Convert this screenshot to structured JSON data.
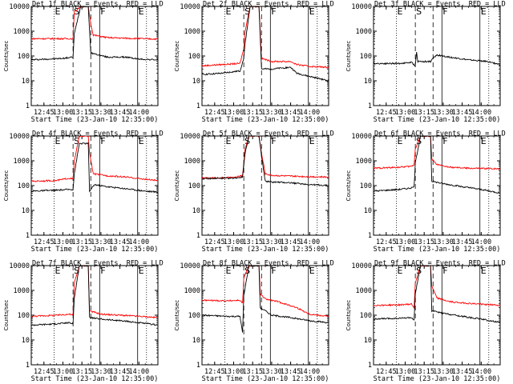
{
  "chart_data": {
    "type": "line",
    "common": {
      "ylabel": "Counts/sec",
      "xlabel": "Start Time (23-Jan-10 12:35:00)",
      "yscale": "log",
      "ylim": [
        1,
        10000
      ],
      "yticks": [
        1,
        10,
        100,
        1000,
        10000
      ],
      "yticklabels": [
        "1",
        "10",
        "100",
        "1000",
        "10000"
      ],
      "xlim": [
        "12:35",
        "14:15"
      ],
      "xticks": [
        "12:45",
        "13:00",
        "13:15",
        "13:30",
        "13:45",
        "14:00"
      ],
      "xticklabels": [
        "12:45",
        "13:00",
        "13:15",
        "13:30",
        "13:45",
        "14:00"
      ],
      "series_colors": {
        "events": "#000000",
        "lld": "#ff0000"
      },
      "interval_labels": [
        "E",
        "S",
        "F",
        "E"
      ],
      "interval_lines": {
        "dotted": [
          "12:53",
          "14:06"
        ],
        "dashed": [
          "13:08",
          "13:22"
        ],
        "solid": [
          "13:29",
          "13:59"
        ]
      }
    },
    "panels": [
      {
        "title": "Det 1f BLACK = Events, RED = LLD",
        "events": [
          [
            "12:35",
            70
          ],
          [
            "13:00",
            80
          ],
          [
            "13:08",
            90
          ],
          [
            "13:09",
            800
          ],
          [
            "13:14",
            10000
          ],
          [
            "13:20",
            10000
          ],
          [
            "13:22",
            120
          ],
          [
            "13:23",
            130
          ],
          [
            "13:35",
            90
          ],
          [
            "13:50",
            90
          ],
          [
            "14:00",
            75
          ],
          [
            "14:15",
            70
          ]
        ],
        "lld": [
          [
            "12:35",
            500
          ],
          [
            "13:08",
            500
          ],
          [
            "13:09",
            6000
          ],
          [
            "13:14",
            10000
          ],
          [
            "13:20",
            10000
          ],
          [
            "13:22",
            2000
          ],
          [
            "13:24",
            700
          ],
          [
            "13:35",
            550
          ],
          [
            "13:50",
            520
          ],
          [
            "14:15",
            480
          ]
        ]
      },
      {
        "title": "Det 2f BLACK = Events, RED = LLD",
        "events": [
          [
            "12:35",
            18
          ],
          [
            "12:50",
            20
          ],
          [
            "13:05",
            25
          ],
          [
            "13:08",
            80
          ],
          [
            "13:09",
            300
          ],
          [
            "13:13",
            10000
          ],
          [
            "13:20",
            10000
          ],
          [
            "13:22",
            30
          ],
          [
            "13:30",
            30
          ],
          [
            "13:45",
            35
          ],
          [
            "13:50",
            20
          ],
          [
            "14:00",
            15
          ],
          [
            "14:15",
            10
          ]
        ],
        "lld": [
          [
            "12:35",
            40
          ],
          [
            "12:50",
            45
          ],
          [
            "13:05",
            50
          ],
          [
            "13:08",
            200
          ],
          [
            "13:09",
            1000
          ],
          [
            "13:13",
            10000
          ],
          [
            "13:20",
            10000
          ],
          [
            "13:22",
            80
          ],
          [
            "13:30",
            60
          ],
          [
            "13:45",
            60
          ],
          [
            "13:50",
            45
          ],
          [
            "14:00",
            38
          ],
          [
            "14:15",
            35
          ]
        ]
      },
      {
        "title": "Det 3f BLACK = Events, RED = LLD",
        "events": [
          [
            "12:35",
            50
          ],
          [
            "12:55",
            50
          ],
          [
            "13:05",
            55
          ],
          [
            "13:08",
            40
          ],
          [
            "13:09",
            150
          ],
          [
            "13:10",
            60
          ],
          [
            "13:20",
            60
          ],
          [
            "13:22",
            80
          ],
          [
            "13:25",
            110
          ],
          [
            "13:35",
            90
          ],
          [
            "13:50",
            70
          ],
          [
            "14:05",
            60
          ],
          [
            "14:15",
            45
          ]
        ],
        "lld": []
      },
      {
        "title": "Det 4f BLACK = Events, RED = LLD",
        "events": [
          [
            "12:35",
            60
          ],
          [
            "12:55",
            65
          ],
          [
            "13:05",
            70
          ],
          [
            "13:08",
            70
          ],
          [
            "13:09",
            300
          ],
          [
            "13:13",
            5000
          ],
          [
            "13:20",
            5000
          ],
          [
            "13:21",
            60
          ],
          [
            "13:25",
            110
          ],
          [
            "13:35",
            90
          ],
          [
            "13:50",
            75
          ],
          [
            "14:05",
            60
          ],
          [
            "14:15",
            55
          ]
        ],
        "lld": [
          [
            "12:35",
            150
          ],
          [
            "12:55",
            160
          ],
          [
            "13:05",
            200
          ],
          [
            "13:08",
            180
          ],
          [
            "13:09",
            1000
          ],
          [
            "13:13",
            10000
          ],
          [
            "13:20",
            10000
          ],
          [
            "13:21",
            2000
          ],
          [
            "13:24",
            300
          ],
          [
            "13:35",
            250
          ],
          [
            "13:50",
            220
          ],
          [
            "14:05",
            180
          ],
          [
            "14:15",
            160
          ]
        ]
      },
      {
        "title": "Det 5f BLACK = Events, RED = LLD",
        "events": [
          [
            "12:35",
            190
          ],
          [
            "13:00",
            200
          ],
          [
            "13:07",
            220
          ],
          [
            "13:09",
            2000
          ],
          [
            "13:12",
            10000
          ],
          [
            "13:20",
            10000
          ],
          [
            "13:22",
            1500
          ],
          [
            "13:25",
            150
          ],
          [
            "13:30",
            140
          ],
          [
            "13:45",
            130
          ],
          [
            "14:00",
            110
          ],
          [
            "14:15",
            100
          ]
        ],
        "lld": [
          [
            "12:35",
            200
          ],
          [
            "13:00",
            210
          ],
          [
            "13:07",
            250
          ],
          [
            "13:09",
            3000
          ],
          [
            "13:12",
            10000
          ],
          [
            "13:20",
            10000
          ],
          [
            "13:22",
            2000
          ],
          [
            "13:25",
            300
          ],
          [
            "13:30",
            260
          ],
          [
            "13:45",
            240
          ],
          [
            "14:00",
            230
          ],
          [
            "14:15",
            220
          ]
        ]
      },
      {
        "title": "Det 6f BLACK = Events, RED = LLD",
        "events": [
          [
            "12:35",
            60
          ],
          [
            "12:55",
            70
          ],
          [
            "13:05",
            80
          ],
          [
            "13:07",
            90
          ],
          [
            "13:08",
            800
          ],
          [
            "13:12",
            10000
          ],
          [
            "13:20",
            10000
          ],
          [
            "13:21",
            150
          ],
          [
            "13:30",
            120
          ],
          [
            "13:45",
            90
          ],
          [
            "14:00",
            70
          ],
          [
            "14:15",
            50
          ]
        ],
        "lld": [
          [
            "12:35",
            500
          ],
          [
            "12:55",
            550
          ],
          [
            "13:05",
            600
          ],
          [
            "13:07",
            700
          ],
          [
            "13:08",
            3000
          ],
          [
            "13:12",
            10000
          ],
          [
            "13:20",
            10000
          ],
          [
            "13:21",
            1200
          ],
          [
            "13:25",
            700
          ],
          [
            "13:35",
            550
          ],
          [
            "13:50",
            500
          ],
          [
            "14:15",
            480
          ]
        ]
      },
      {
        "title": "Det 7f BLACK = Events, RED = LLD",
        "events": [
          [
            "12:35",
            40
          ],
          [
            "12:55",
            45
          ],
          [
            "13:05",
            50
          ],
          [
            "13:08",
            45
          ],
          [
            "13:09",
            500
          ],
          [
            "13:13",
            10000
          ],
          [
            "13:20",
            10000
          ],
          [
            "13:21",
            80
          ],
          [
            "13:30",
            70
          ],
          [
            "13:45",
            60
          ],
          [
            "14:00",
            50
          ],
          [
            "14:15",
            40
          ]
        ],
        "lld": [
          [
            "12:35",
            90
          ],
          [
            "12:55",
            100
          ],
          [
            "13:05",
            110
          ],
          [
            "13:08",
            100
          ],
          [
            "13:09",
            2000
          ],
          [
            "13:13",
            10000
          ],
          [
            "13:20",
            10000
          ],
          [
            "13:21",
            150
          ],
          [
            "13:30",
            110
          ],
          [
            "13:45",
            100
          ],
          [
            "14:00",
            90
          ],
          [
            "14:15",
            80
          ]
        ]
      },
      {
        "title": "Det 8f BLACK = Events, RED = LLD",
        "events": [
          [
            "12:35",
            100
          ],
          [
            "12:55",
            90
          ],
          [
            "13:05",
            90
          ],
          [
            "13:07",
            20
          ],
          [
            "13:08",
            600
          ],
          [
            "13:12",
            10000
          ],
          [
            "13:20",
            10000
          ],
          [
            "13:21",
            200
          ],
          [
            "13:25",
            150
          ],
          [
            "13:30",
            100
          ],
          [
            "13:45",
            80
          ],
          [
            "14:00",
            60
          ],
          [
            "14:15",
            50
          ]
        ],
        "lld": [
          [
            "12:35",
            400
          ],
          [
            "12:55",
            380
          ],
          [
            "13:05",
            400
          ],
          [
            "13:07",
            300
          ],
          [
            "13:08",
            3000
          ],
          [
            "13:12",
            10000
          ],
          [
            "13:20",
            10000
          ],
          [
            "13:21",
            700
          ],
          [
            "13:25",
            450
          ],
          [
            "13:35",
            350
          ],
          [
            "13:50",
            200
          ],
          [
            "14:00",
            110
          ],
          [
            "14:15",
            90
          ]
        ]
      },
      {
        "title": "Det 9f BLACK = Events, RED = LLD",
        "events": [
          [
            "12:35",
            70
          ],
          [
            "12:55",
            75
          ],
          [
            "13:05",
            80
          ],
          [
            "13:07",
            60
          ],
          [
            "13:08",
            700
          ],
          [
            "13:12",
            10000
          ],
          [
            "13:20",
            10000
          ],
          [
            "13:21",
            150
          ],
          [
            "13:30",
            120
          ],
          [
            "13:45",
            90
          ],
          [
            "14:00",
            70
          ],
          [
            "14:15",
            50
          ]
        ],
        "lld": [
          [
            "12:35",
            250
          ],
          [
            "12:55",
            260
          ],
          [
            "13:05",
            280
          ],
          [
            "13:07",
            200
          ],
          [
            "13:08",
            2000
          ],
          [
            "13:12",
            10000
          ],
          [
            "13:20",
            10000
          ],
          [
            "13:21",
            1500
          ],
          [
            "13:25",
            500
          ],
          [
            "13:35",
            350
          ],
          [
            "13:50",
            300
          ],
          [
            "14:15",
            250
          ]
        ]
      }
    ]
  }
}
